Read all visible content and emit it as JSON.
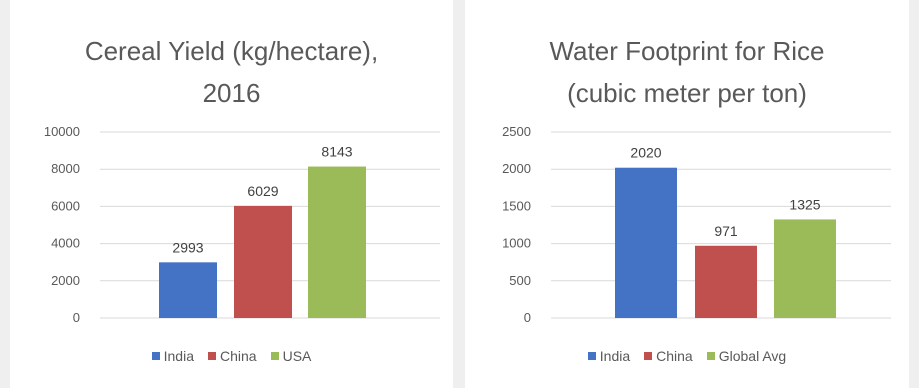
{
  "chart_data": [
    {
      "type": "bar",
      "title_lines": [
        "Cereal Yield (kg/hectare),",
        "2016"
      ],
      "categories": [
        "India",
        "China",
        "USA"
      ],
      "values": [
        2993,
        6029,
        8143
      ],
      "data_labels": [
        "2993",
        "6029",
        "8143"
      ],
      "colors": [
        "#4472c4",
        "#c0504d",
        "#9bbb59"
      ],
      "ylim": [
        0,
        10000
      ],
      "yticks": [
        "0",
        "2000",
        "4000",
        "6000",
        "8000",
        "10000"
      ],
      "grid": true,
      "legend_position": "bottom"
    },
    {
      "type": "bar",
      "title_lines": [
        "Water Footprint for Rice",
        "(cubic meter per ton)"
      ],
      "categories": [
        "India",
        "China",
        "Global Avg"
      ],
      "values": [
        2020,
        971,
        1325
      ],
      "data_labels": [
        "2020",
        "971",
        "1325"
      ],
      "colors": [
        "#4472c4",
        "#c0504d",
        "#9bbb59"
      ],
      "ylim": [
        0,
        2500
      ],
      "yticks": [
        "0",
        "500",
        "1000",
        "1500",
        "2000",
        "2500"
      ],
      "grid": true,
      "legend_position": "bottom"
    }
  ]
}
